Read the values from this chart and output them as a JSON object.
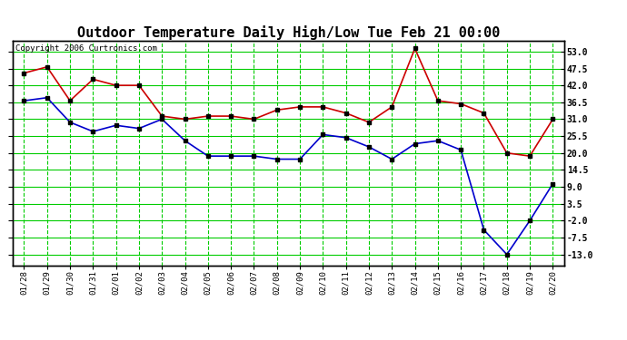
{
  "title": "Outdoor Temperature Daily High/Low Tue Feb 21 00:00",
  "copyright": "Copyright 2006 Curtronics.com",
  "x_labels": [
    "01/28",
    "01/29",
    "01/30",
    "01/31",
    "02/01",
    "02/02",
    "02/03",
    "02/04",
    "02/05",
    "02/06",
    "02/07",
    "02/08",
    "02/09",
    "02/10",
    "02/11",
    "02/12",
    "02/13",
    "02/14",
    "02/15",
    "02/16",
    "02/17",
    "02/18",
    "02/19",
    "02/20"
  ],
  "high_temps": [
    46,
    48,
    37,
    44,
    42,
    42,
    32,
    31,
    32,
    32,
    31,
    34,
    35,
    35,
    33,
    30,
    35,
    54,
    37,
    36,
    33,
    20,
    19,
    31
  ],
  "low_temps": [
    37,
    38,
    30,
    27,
    29,
    28,
    31,
    24,
    19,
    19,
    19,
    18,
    18,
    26,
    25,
    22,
    18,
    23,
    24,
    21,
    -5,
    -13,
    -2,
    10
  ],
  "y_ticks": [
    -13.0,
    -7.5,
    -2.0,
    3.5,
    9.0,
    14.5,
    20.0,
    25.5,
    31.0,
    36.5,
    42.0,
    47.5,
    53.0
  ],
  "y_min": -16.5,
  "y_max": 56.5,
  "high_color": "#cc0000",
  "low_color": "#0000cc",
  "grid_color": "#00cc00",
  "bg_color": "#ffffff",
  "title_fontsize": 11,
  "marker": "s",
  "marker_size": 3,
  "line_width": 1.2
}
